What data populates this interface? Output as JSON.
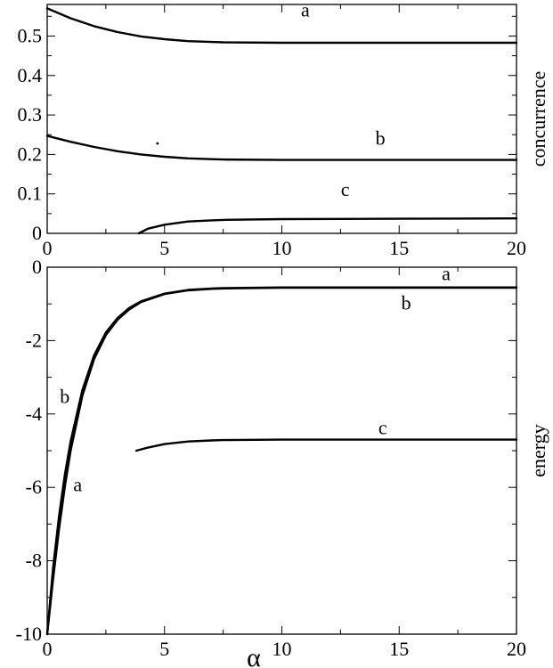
{
  "chart_data": [
    {
      "type": "line",
      "xlabel": "",
      "ylabel": "concurrence",
      "xlim": [
        0,
        20
      ],
      "ylim": [
        0,
        0.58
      ],
      "x_ticks": [
        "0",
        "5",
        "10",
        "15",
        "20"
      ],
      "y_ticks": [
        "0",
        "0.1",
        "0.2",
        "0.3",
        "0.4",
        "0.5"
      ],
      "grid": false,
      "series": [
        {
          "name": "a",
          "x": [
            0,
            1,
            2,
            3,
            4,
            5,
            6,
            7,
            7.5,
            10,
            15,
            20
          ],
          "values": [
            0.57,
            0.545,
            0.525,
            0.51,
            0.499,
            0.492,
            0.487,
            0.485,
            0.484,
            0.483,
            0.483,
            0.483
          ]
        },
        {
          "name": "b",
          "x": [
            0,
            1,
            2,
            3,
            4,
            5,
            6,
            7,
            7.5,
            10,
            15,
            20
          ],
          "values": [
            0.247,
            0.232,
            0.219,
            0.208,
            0.2,
            0.194,
            0.19,
            0.188,
            0.187,
            0.186,
            0.186,
            0.186
          ]
        },
        {
          "name": "c",
          "x": [
            3.9,
            4.3,
            5,
            6,
            7,
            7.5,
            10,
            15,
            20
          ],
          "values": [
            0.0,
            0.012,
            0.022,
            0.03,
            0.033,
            0.034,
            0.036,
            0.037,
            0.038
          ]
        }
      ],
      "labels": [
        {
          "text": "a",
          "x": 11.0,
          "y": 0.55
        },
        {
          "text": "b",
          "x": 14.2,
          "y": 0.225
        },
        {
          "text": "c",
          "x": 12.7,
          "y": 0.095
        }
      ],
      "stray_point": {
        "x": 4.7,
        "y": 0.228
      }
    },
    {
      "type": "line",
      "xlabel": "α",
      "ylabel": "energy",
      "xlim": [
        0,
        20
      ],
      "ylim": [
        -10,
        0
      ],
      "x_ticks": [
        "0",
        "5",
        "10",
        "15",
        "20"
      ],
      "y_ticks": [
        "-10",
        "-8",
        "-6",
        "-4",
        "-2",
        "0"
      ],
      "grid": false,
      "series": [
        {
          "name": "a",
          "x": [
            0,
            0.25,
            0.5,
            0.75,
            1,
            1.5,
            2,
            2.5,
            3,
            3.5,
            4,
            5,
            6,
            7,
            7.5,
            10,
            15,
            20
          ],
          "values": [
            -10,
            -8.5,
            -7.15,
            -5.98,
            -5.0,
            -3.5,
            -2.5,
            -1.85,
            -1.43,
            -1.15,
            -0.95,
            -0.73,
            -0.63,
            -0.59,
            -0.58,
            -0.56,
            -0.56,
            -0.56
          ]
        },
        {
          "name": "b",
          "x": [
            0,
            0.25,
            0.5,
            0.75,
            1,
            1.5,
            2,
            2.5,
            3,
            3.5,
            4,
            5,
            6,
            7,
            7.5,
            10,
            15,
            20
          ],
          "values": [
            -10,
            -8.2,
            -6.8,
            -5.66,
            -4.75,
            -3.35,
            -2.4,
            -1.78,
            -1.38,
            -1.11,
            -0.93,
            -0.72,
            -0.62,
            -0.58,
            -0.57,
            -0.55,
            -0.55,
            -0.55
          ]
        },
        {
          "name": "c",
          "x": [
            3.8,
            4.2,
            5,
            6,
            7,
            7.5,
            10,
            15,
            20
          ],
          "values": [
            -5.0,
            -4.93,
            -4.82,
            -4.75,
            -4.72,
            -4.71,
            -4.7,
            -4.7,
            -4.7
          ]
        }
      ],
      "labels": [
        {
          "text": "a",
          "x": 17.0,
          "y": -0.35
        },
        {
          "text": "b",
          "x": 15.3,
          "y": -1.15
        },
        {
          "text": "b",
          "x": 0.75,
          "y": -3.7
        },
        {
          "text": "c",
          "x": 14.3,
          "y": -4.55
        },
        {
          "text": "a",
          "x": 1.3,
          "y": -6.1
        }
      ]
    }
  ]
}
